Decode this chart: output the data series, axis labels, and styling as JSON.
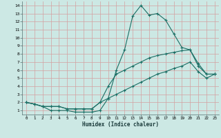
{
  "xlabel": "Humidex (Indice chaleur)",
  "bg_color": "#cce8e4",
  "grid_color": "#b0d4d0",
  "line_color": "#1a6e64",
  "xlim": [
    -0.5,
    23.5
  ],
  "ylim": [
    0.5,
    14.5
  ],
  "xticks": [
    0,
    1,
    2,
    3,
    4,
    5,
    6,
    7,
    8,
    9,
    10,
    11,
    12,
    13,
    14,
    15,
    16,
    17,
    18,
    19,
    20,
    21,
    22,
    23
  ],
  "yticks": [
    1,
    2,
    3,
    4,
    5,
    6,
    7,
    8,
    9,
    10,
    11,
    12,
    13,
    14
  ],
  "series1_x": [
    0,
    1,
    2,
    3,
    4,
    5,
    6,
    7,
    8,
    9,
    10,
    11,
    12,
    13,
    14,
    15,
    16,
    17,
    18,
    19,
    20,
    21,
    22,
    23
  ],
  "series1_y": [
    2.0,
    1.8,
    1.5,
    1.0,
    1.0,
    1.0,
    0.8,
    0.8,
    0.8,
    1.0,
    2.5,
    6.0,
    8.5,
    12.7,
    14.0,
    12.8,
    13.0,
    12.2,
    10.5,
    8.8,
    8.5,
    6.8,
    5.5,
    5.5
  ],
  "series2_x": [
    0,
    1,
    2,
    3,
    4,
    5,
    6,
    7,
    8,
    9,
    10,
    11,
    12,
    13,
    14,
    15,
    16,
    17,
    18,
    19,
    20,
    21,
    22,
    23
  ],
  "series2_y": [
    2.0,
    1.8,
    1.5,
    1.5,
    1.5,
    1.2,
    1.2,
    1.2,
    1.2,
    2.0,
    4.0,
    5.5,
    6.0,
    6.5,
    7.0,
    7.5,
    7.8,
    8.0,
    8.2,
    8.4,
    8.5,
    6.5,
    5.5,
    5.5
  ],
  "series3_x": [
    0,
    1,
    2,
    3,
    4,
    5,
    6,
    7,
    8,
    9,
    10,
    11,
    12,
    13,
    14,
    15,
    16,
    17,
    18,
    19,
    20,
    21,
    22,
    23
  ],
  "series3_y": [
    2.0,
    1.8,
    1.5,
    1.5,
    1.5,
    1.2,
    1.2,
    1.2,
    1.2,
    2.0,
    2.5,
    3.0,
    3.5,
    4.0,
    4.5,
    5.0,
    5.5,
    5.8,
    6.2,
    6.5,
    7.0,
    5.8,
    5.0,
    5.5
  ]
}
